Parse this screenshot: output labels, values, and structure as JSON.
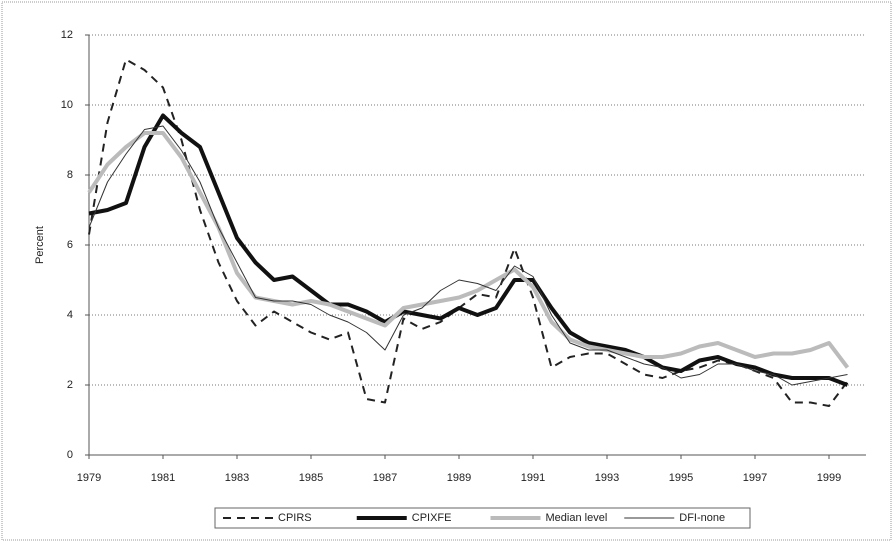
{
  "chart_data": {
    "type": "line",
    "y_label": "Percent",
    "x": [
      1979,
      1979.5,
      1980,
      1980.5,
      1981,
      1981.5,
      1982,
      1982.5,
      1983,
      1983.5,
      1984,
      1984.5,
      1985,
      1985.5,
      1986,
      1986.5,
      1987,
      1987.5,
      1988,
      1988.5,
      1989,
      1989.5,
      1990,
      1990.5,
      1991,
      1991.5,
      1992,
      1992.5,
      1993,
      1993.5,
      1994,
      1994.5,
      1995,
      1995.5,
      1996,
      1996.5,
      1997,
      1997.5,
      1998,
      1998.5,
      1999,
      1999.5
    ],
    "series": [
      {
        "name": "CPIRS",
        "color": "#222222",
        "line_width": 2,
        "dash": "8 6",
        "values": [
          6.3,
          9.5,
          11.3,
          11.0,
          10.5,
          9.0,
          7.0,
          5.5,
          4.4,
          3.7,
          4.1,
          3.8,
          3.5,
          3.3,
          3.5,
          1.6,
          1.5,
          3.9,
          3.6,
          3.8,
          4.2,
          4.6,
          4.5,
          5.9,
          4.5,
          2.5,
          2.8,
          2.9,
          2.9,
          2.6,
          2.3,
          2.2,
          2.4,
          2.5,
          2.7,
          2.6,
          2.4,
          2.2,
          1.5,
          1.5,
          1.4,
          2.1
        ]
      },
      {
        "name": "CPIXFE",
        "color": "#111111",
        "line_width": 4,
        "dash": "none",
        "values": [
          6.9,
          7.0,
          7.2,
          8.8,
          9.7,
          9.2,
          8.8,
          7.5,
          6.2,
          5.5,
          5.0,
          5.1,
          4.7,
          4.3,
          4.3,
          4.1,
          3.8,
          4.1,
          4.0,
          3.9,
          4.2,
          4.0,
          4.2,
          5.0,
          5.0,
          4.2,
          3.5,
          3.2,
          3.1,
          3.0,
          2.8,
          2.5,
          2.4,
          2.7,
          2.8,
          2.6,
          2.5,
          2.3,
          2.2,
          2.2,
          2.2,
          2.0
        ]
      },
      {
        "name": "Median level",
        "color": "#bbbbbb",
        "line_width": 4,
        "dash": "none",
        "values": [
          7.5,
          8.3,
          8.8,
          9.2,
          9.2,
          8.5,
          7.5,
          6.5,
          5.2,
          4.5,
          4.4,
          4.3,
          4.4,
          4.3,
          4.1,
          3.9,
          3.7,
          4.2,
          4.3,
          4.4,
          4.5,
          4.7,
          5.0,
          5.3,
          4.8,
          3.8,
          3.3,
          3.1,
          3.0,
          2.9,
          2.8,
          2.8,
          2.9,
          3.1,
          3.2,
          3.0,
          2.8,
          2.9,
          2.9,
          3.0,
          3.2,
          2.5
        ]
      },
      {
        "name": "DFI-none",
        "color": "#333333",
        "line_width": 1,
        "dash": "none",
        "values": [
          6.5,
          7.8,
          8.6,
          9.3,
          9.4,
          8.7,
          7.8,
          6.5,
          5.5,
          4.5,
          4.4,
          4.4,
          4.3,
          4.0,
          3.8,
          3.5,
          3.0,
          4.0,
          4.2,
          4.7,
          5.0,
          4.9,
          4.7,
          5.4,
          5.1,
          4.0,
          3.2,
          3.0,
          3.0,
          2.8,
          2.6,
          2.5,
          2.2,
          2.3,
          2.6,
          2.6,
          2.4,
          2.3,
          2.0,
          2.1,
          2.2,
          2.3
        ]
      }
    ],
    "xlim": [
      1979,
      2000
    ],
    "xticks": [
      1979,
      1981,
      1983,
      1985,
      1987,
      1989,
      1991,
      1993,
      1995,
      1997,
      1999
    ],
    "ylim": [
      0,
      12
    ],
    "yticks": [
      0,
      2,
      4,
      6,
      8,
      10,
      12
    ],
    "grid": true,
    "legend": "bottom"
  }
}
